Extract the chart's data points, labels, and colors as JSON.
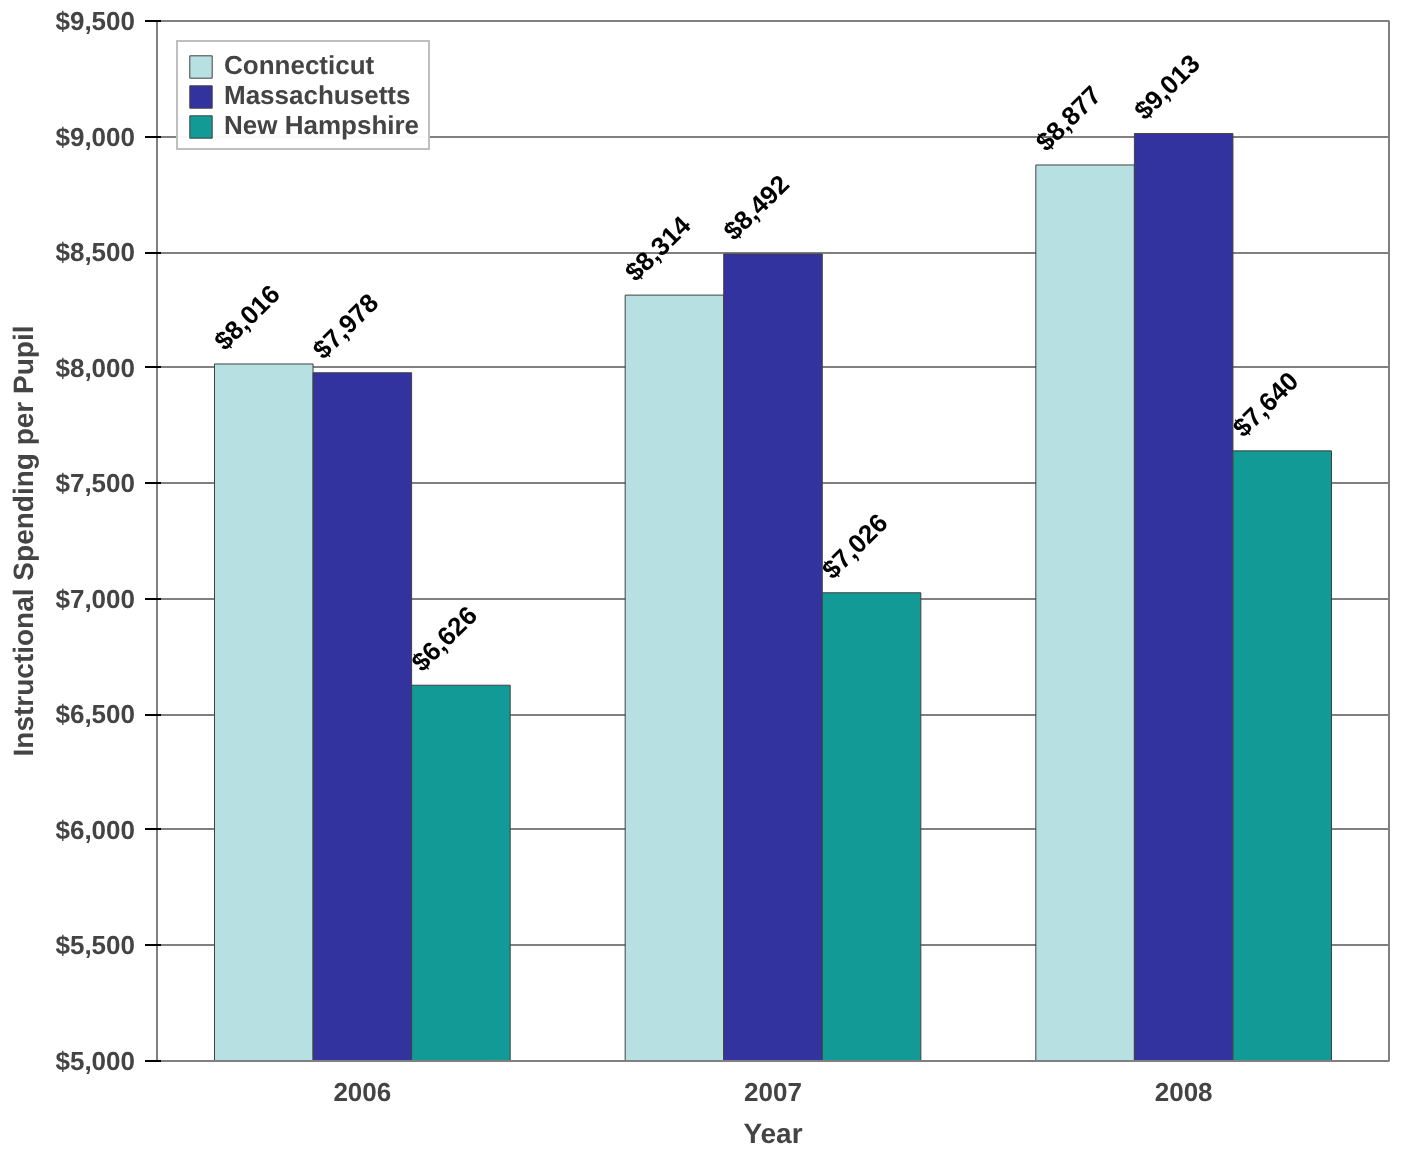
{
  "chart_data": {
    "type": "bar",
    "xlabel": "Year",
    "ylabel": "Instructional Spending per Pupil",
    "categories": [
      "2006",
      "2007",
      "2008"
    ],
    "series": [
      {
        "name": "Connecticut",
        "color": "#b7e0e3",
        "values": [
          8016,
          8314,
          8877
        ],
        "value_labels": [
          "$8,016",
          "$8,314",
          "$8,877"
        ]
      },
      {
        "name": "Massachusetts",
        "color": "#3333a0",
        "values": [
          7978,
          8492,
          9013
        ],
        "value_labels": [
          "$7,978",
          "$8,492",
          "$9,013"
        ]
      },
      {
        "name": "New Hampshire",
        "color": "#119a96",
        "values": [
          6626,
          7026,
          7640
        ],
        "value_labels": [
          "$6,626",
          "$7,026",
          "$7,640"
        ]
      }
    ],
    "ylim": [
      5000,
      9500
    ],
    "yticks": [
      {
        "value": 5000,
        "label": "$5,000"
      },
      {
        "value": 5500,
        "label": "$5,500"
      },
      {
        "value": 6000,
        "label": "$6,000"
      },
      {
        "value": 6500,
        "label": "$6,500"
      },
      {
        "value": 7000,
        "label": "$7,000"
      },
      {
        "value": 7500,
        "label": "$7,500"
      },
      {
        "value": 8000,
        "label": "$8,000"
      },
      {
        "value": 8500,
        "label": "$8,500"
      },
      {
        "value": 9000,
        "label": "$9,000"
      },
      {
        "value": 9500,
        "label": "$9,500"
      }
    ],
    "grid": "y",
    "legend": "top left"
  }
}
